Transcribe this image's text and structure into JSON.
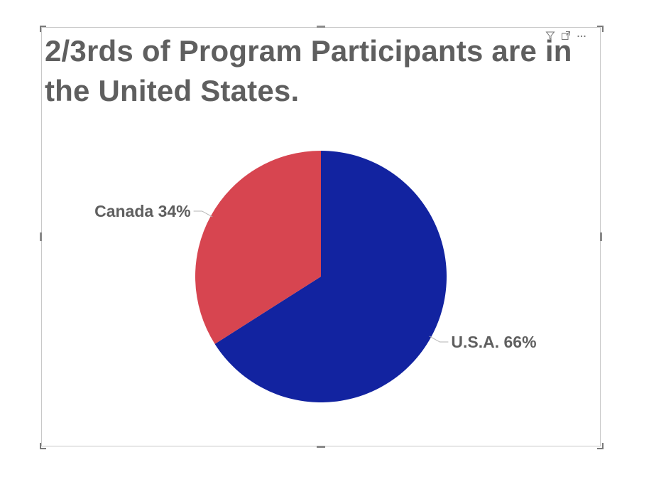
{
  "visual": {
    "title": "2/3rds of Program Participants are in the United States.",
    "header_icons": [
      "filter-icon",
      "focus-mode-icon",
      "more-options-icon"
    ]
  },
  "chart_data": {
    "type": "pie",
    "title": "2/3rds of Program Participants are in the United States.",
    "slices": [
      {
        "name": "U.S.A.",
        "value": 66,
        "label": "U.S.A. 66%",
        "color": "#1223a0"
      },
      {
        "name": "Canada",
        "value": 34,
        "label": "Canada 34%",
        "color": "#d74550"
      }
    ],
    "start_angle_deg": 0,
    "direction": "clockwise",
    "legend": "none",
    "label_style": "category and percent",
    "leader_line_color": "#b5b5b5"
  }
}
